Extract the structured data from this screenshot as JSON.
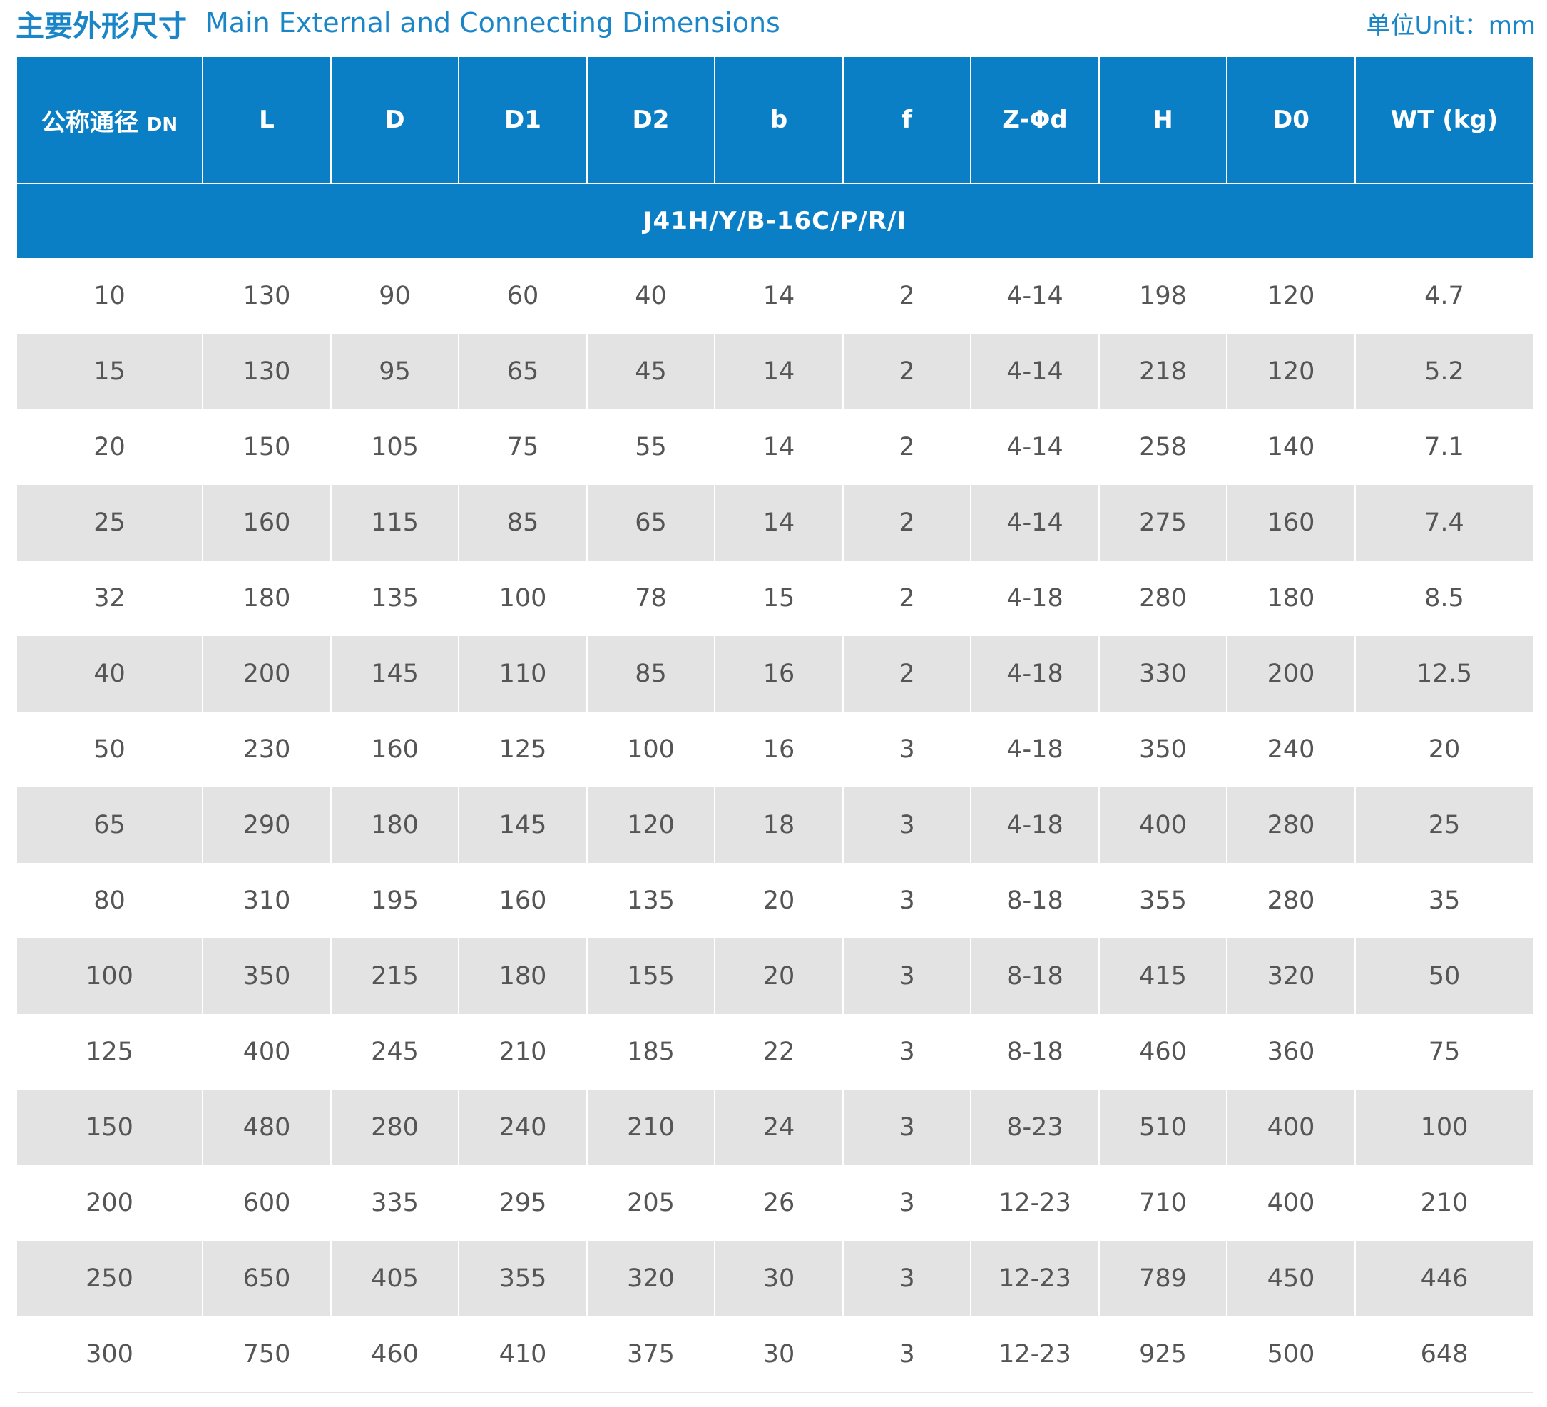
{
  "header": {
    "title_cn": "主要外形尺寸",
    "title_en": "Main External and Connecting Dimensions",
    "unit": "单位Unit：mm"
  },
  "table": {
    "columns": [
      "公称通径",
      "DN",
      "L",
      "D",
      "D1",
      "D2",
      "b",
      "f",
      "Z-Φd",
      "H",
      "D0",
      "WT (kg)"
    ],
    "model": "J41H/Y/B-16C/P/R/I",
    "rows": [
      [
        "10",
        "130",
        "90",
        "60",
        "40",
        "14",
        "2",
        "4-14",
        "198",
        "120",
        "4.7"
      ],
      [
        "15",
        "130",
        "95",
        "65",
        "45",
        "14",
        "2",
        "4-14",
        "218",
        "120",
        "5.2"
      ],
      [
        "20",
        "150",
        "105",
        "75",
        "55",
        "14",
        "2",
        "4-14",
        "258",
        "140",
        "7.1"
      ],
      [
        "25",
        "160",
        "115",
        "85",
        "65",
        "14",
        "2",
        "4-14",
        "275",
        "160",
        "7.4"
      ],
      [
        "32",
        "180",
        "135",
        "100",
        "78",
        "15",
        "2",
        "4-18",
        "280",
        "180",
        "8.5"
      ],
      [
        "40",
        "200",
        "145",
        "110",
        "85",
        "16",
        "2",
        "4-18",
        "330",
        "200",
        "12.5"
      ],
      [
        "50",
        "230",
        "160",
        "125",
        "100",
        "16",
        "3",
        "4-18",
        "350",
        "240",
        "20"
      ],
      [
        "65",
        "290",
        "180",
        "145",
        "120",
        "18",
        "3",
        "4-18",
        "400",
        "280",
        "25"
      ],
      [
        "80",
        "310",
        "195",
        "160",
        "135",
        "20",
        "3",
        "8-18",
        "355",
        "280",
        "35"
      ],
      [
        "100",
        "350",
        "215",
        "180",
        "155",
        "20",
        "3",
        "8-18",
        "415",
        "320",
        "50"
      ],
      [
        "125",
        "400",
        "245",
        "210",
        "185",
        "22",
        "3",
        "8-18",
        "460",
        "360",
        "75"
      ],
      [
        "150",
        "480",
        "280",
        "240",
        "210",
        "24",
        "3",
        "8-23",
        "510",
        "400",
        "100"
      ],
      [
        "200",
        "600",
        "335",
        "295",
        "205",
        "26",
        "3",
        "12-23",
        "710",
        "400",
        "210"
      ],
      [
        "250",
        "650",
        "405",
        "355",
        "320",
        "30",
        "3",
        "12-23",
        "789",
        "450",
        "446"
      ],
      [
        "300",
        "750",
        "460",
        "410",
        "375",
        "30",
        "3",
        "12-23",
        "925",
        "500",
        "648"
      ]
    ]
  },
  "colors": {
    "header_blue": "#0a7fc5",
    "title_blue": "#1a86c8",
    "stripe_gray": "#e3e3e3",
    "cell_text": "#555555"
  }
}
